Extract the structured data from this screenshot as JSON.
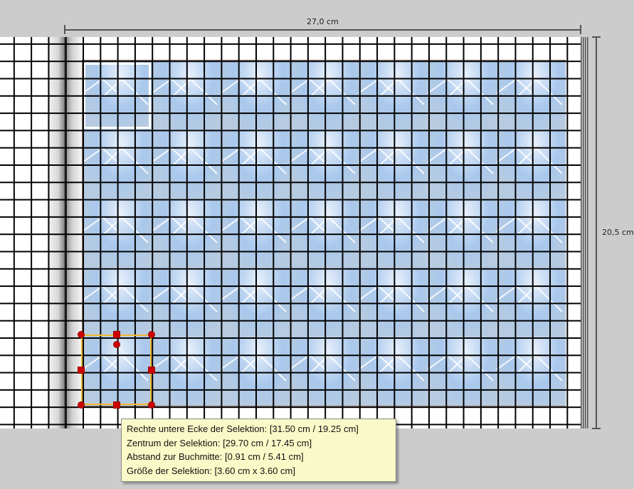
{
  "dimensions": {
    "width_label": "27,0 cm",
    "height_label": "20,5 cm"
  },
  "layout": {
    "tile_columns": 7,
    "tile_rows": 5
  },
  "tooltip": {
    "lines": [
      "Rechte untere Ecke der Selektion: [31.50 cm / 19.25 cm]",
      "Zentrum der Selektion: [29.70 cm / 17.45 cm]",
      "Abstand zur Buchmitte: [0.91 cm / 5.41 cm]",
      "Größe der Selektion: [3.60 cm x 3.60 cm]"
    ]
  },
  "colors": {
    "selection_border": "#f0b830",
    "handle": "#cc0000",
    "tooltip_bg": "#fafac8"
  }
}
